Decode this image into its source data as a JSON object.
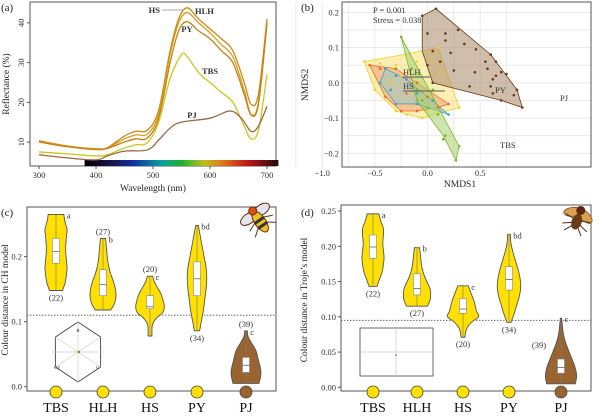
{
  "panels": {
    "a": "(a)",
    "b": "(b)",
    "c": "(c)",
    "d": "(d)"
  },
  "chart_data": [
    {
      "id": "a",
      "type": "line",
      "xlabel": "Wavelength (nm)",
      "ylabel": "Reflectance (%)",
      "xlim": [
        300,
        700
      ],
      "ylim": [
        5,
        45
      ],
      "xticks": [
        300,
        400,
        500,
        600,
        700
      ],
      "yticks": [
        10,
        20,
        30,
        40
      ],
      "spectrum_bar": [
        380,
        720
      ],
      "series": [
        {
          "name": "HS",
          "color": "#c88a10",
          "x": [
            300,
            350,
            400,
            420,
            450,
            470,
            490,
            510,
            530,
            545,
            560,
            580,
            600,
            620,
            640,
            660,
            672,
            685,
            700
          ],
          "y": [
            10.3,
            9,
            8.3,
            8.6,
            11.5,
            12.7,
            13,
            18,
            33,
            41,
            43.8,
            41,
            38.5,
            36,
            33,
            25,
            19.5,
            22,
            41
          ]
        },
        {
          "name": "HLH",
          "color": "#d69a25",
          "x": [
            300,
            350,
            400,
            420,
            450,
            470,
            490,
            510,
            530,
            545,
            560,
            580,
            600,
            620,
            640,
            660,
            672,
            685,
            700
          ],
          "y": [
            10.1,
            8.9,
            8.2,
            8.5,
            10.8,
            11.8,
            12,
            17,
            32,
            40,
            42.6,
            40,
            37.5,
            34.5,
            31.5,
            23,
            17,
            20,
            40
          ]
        },
        {
          "name": "PY",
          "color": "#c98010",
          "x": [
            300,
            350,
            400,
            420,
            450,
            470,
            490,
            510,
            530,
            545,
            560,
            580,
            600,
            620,
            640,
            660,
            672,
            685,
            700
          ],
          "y": [
            10,
            8.8,
            8.1,
            8.4,
            10,
            10.8,
            11,
            16,
            30,
            38,
            40.3,
            38,
            36,
            33,
            30,
            22,
            16.8,
            19.5,
            40
          ]
        },
        {
          "name": "TBS",
          "color": "#c8c820",
          "x": [
            300,
            350,
            400,
            420,
            450,
            470,
            490,
            510,
            530,
            550,
            560,
            580,
            600,
            620,
            640,
            660,
            672,
            685,
            700
          ],
          "y": [
            7.5,
            7,
            6.5,
            6.8,
            8.5,
            9.3,
            9.8,
            15,
            26,
            32,
            31.5,
            27.5,
            25,
            22.5,
            20,
            14,
            10.8,
            13,
            27
          ]
        },
        {
          "name": "PJ",
          "color": "#9a6a40",
          "x": [
            300,
            350,
            400,
            420,
            450,
            490,
            510,
            530,
            550,
            600,
            635,
            655,
            672,
            685,
            700
          ],
          "y": [
            6.8,
            6,
            5.5,
            6.5,
            7.7,
            8,
            10.5,
            13.5,
            15,
            16,
            17.8,
            16,
            12.7,
            14,
            19
          ]
        }
      ]
    },
    {
      "id": "b",
      "type": "scatter",
      "xlabel": "NMDS1",
      "ylabel": "NMDS2",
      "xlim": [
        -1.3,
        0.95
      ],
      "ylim": [
        -0.24,
        0.22
      ],
      "xticks": [
        -1.0,
        -0.5,
        0.0,
        0.5
      ],
      "yticks": [
        -0.2,
        -0.1,
        0.0,
        0.1,
        0.2
      ],
      "grid": true,
      "annotations": [
        "P = 0.001",
        "Stress =  0.038"
      ],
      "groups": [
        {
          "name": "PY",
          "color": "#f5d020",
          "fill": "#f7e27a",
          "hull": [
            [
              -0.6,
              0.06
            ],
            [
              -0.05,
              0.09
            ],
            [
              0.1,
              0.1
            ],
            [
              0.3,
              -0.07
            ],
            [
              -0.05,
              -0.1
            ],
            [
              -0.3,
              -0.08
            ],
            [
              -0.5,
              -0.02
            ]
          ],
          "points": [
            [
              -0.6,
              0.06
            ],
            [
              -0.45,
              0.055
            ],
            [
              -0.3,
              0.05
            ],
            [
              -0.1,
              0.06
            ],
            [
              0.1,
              0.1
            ],
            [
              0.3,
              -0.07
            ],
            [
              -0.05,
              -0.1
            ],
            [
              -0.2,
              -0.09
            ],
            [
              -0.3,
              -0.08
            ],
            [
              -0.5,
              -0.02
            ],
            [
              -0.35,
              0.0
            ],
            [
              -0.15,
              -0.03
            ],
            [
              0.05,
              -0.05
            ],
            [
              -0.25,
              0.02
            ]
          ]
        },
        {
          "name": "HLH",
          "color": "#e86a2a",
          "fill": "#f0a070",
          "hull": [
            [
              -0.55,
              0.05
            ],
            [
              -0.3,
              0.04
            ],
            [
              0.2,
              -0.06
            ],
            [
              0.1,
              -0.07
            ],
            [
              -0.1,
              -0.08
            ],
            [
              -0.25,
              -0.08
            ],
            [
              -0.4,
              -0.04
            ]
          ],
          "points": [
            [
              -0.55,
              0.05
            ],
            [
              -0.45,
              0.04
            ],
            [
              -0.3,
              0.04
            ],
            [
              -0.1,
              0.0
            ],
            [
              0.2,
              -0.06
            ],
            [
              0.1,
              -0.07
            ],
            [
              -0.1,
              -0.08
            ],
            [
              -0.25,
              -0.08
            ],
            [
              -0.4,
              -0.04
            ],
            [
              -0.35,
              -0.02
            ],
            [
              -0.2,
              -0.03
            ],
            [
              0.0,
              -0.04
            ]
          ]
        },
        {
          "name": "HS",
          "color": "#3aa0c8",
          "fill": "#9ac8c8",
          "hull": [
            [
              -0.45,
              0.0
            ],
            [
              -0.4,
              0.04
            ],
            [
              -0.2,
              0.01
            ],
            [
              0.2,
              -0.09
            ],
            [
              -0.1,
              -0.06
            ],
            [
              -0.3,
              -0.06
            ]
          ],
          "points": [
            [
              -0.45,
              0.0
            ],
            [
              -0.4,
              0.04
            ],
            [
              -0.3,
              0.02
            ],
            [
              -0.2,
              0.01
            ],
            [
              -0.1,
              -0.03
            ],
            [
              0.05,
              -0.05
            ],
            [
              0.2,
              -0.09
            ],
            [
              -0.1,
              -0.06
            ],
            [
              -0.3,
              -0.06
            ],
            [
              -0.35,
              -0.02
            ]
          ]
        },
        {
          "name": "TBS",
          "color": "#7ab82a",
          "fill": "#a8d070",
          "hull": [
            [
              -0.25,
              0.13
            ],
            [
              0.3,
              -0.18
            ],
            [
              0.27,
              -0.22
            ],
            [
              0.15,
              -0.15
            ],
            [
              -0.1,
              -0.05
            ]
          ],
          "points": [
            [
              -0.25,
              0.13
            ],
            [
              -0.15,
              0.04
            ],
            [
              -0.1,
              -0.02
            ],
            [
              -0.05,
              -0.05
            ],
            [
              0.0,
              -0.07
            ],
            [
              0.1,
              -0.09
            ],
            [
              0.17,
              -0.15
            ],
            [
              0.15,
              -0.16
            ],
            [
              0.3,
              -0.18
            ],
            [
              0.27,
              -0.22
            ],
            [
              -0.1,
              -0.05
            ],
            [
              0.05,
              -0.02
            ]
          ]
        },
        {
          "name": "PJ",
          "color": "#6a3a18",
          "fill": "#a88868",
          "hull": [
            [
              -0.05,
              0.19
            ],
            [
              0.08,
              0.21
            ],
            [
              0.6,
              0.08
            ],
            [
              0.85,
              -0.02
            ],
            [
              0.9,
              -0.07
            ],
            [
              0.7,
              -0.05
            ],
            [
              0.05,
              0.0
            ],
            [
              -0.05,
              0.09
            ]
          ],
          "points": [
            [
              -0.05,
              0.19
            ],
            [
              0.08,
              0.21
            ],
            [
              0.0,
              0.14
            ],
            [
              0.17,
              0.14
            ],
            [
              0.29,
              0.15
            ],
            [
              0.17,
              0.12
            ],
            [
              0.35,
              0.11
            ],
            [
              0.05,
              0.09
            ],
            [
              0.22,
              0.085
            ],
            [
              0.46,
              0.095
            ],
            [
              0.6,
              0.08
            ],
            [
              0.55,
              0.06
            ],
            [
              0.65,
              0.06
            ],
            [
              0.57,
              0.04
            ],
            [
              0.7,
              0.03
            ],
            [
              0.65,
              0.02
            ],
            [
              0.45,
              0.03
            ],
            [
              0.25,
              0.035
            ],
            [
              0.62,
              0.01
            ],
            [
              0.75,
              0.025
            ],
            [
              0.6,
              -0.01
            ],
            [
              0.4,
              -0.01
            ],
            [
              0.62,
              -0.03
            ],
            [
              0.85,
              -0.02
            ],
            [
              0.82,
              -0.035
            ],
            [
              0.9,
              -0.07
            ],
            [
              0.7,
              -0.05
            ],
            [
              0.05,
              0.0
            ],
            [
              0.0,
              0.05
            ],
            [
              0.12,
              0.06
            ]
          ]
        }
      ]
    },
    {
      "id": "c",
      "type": "violin",
      "ylabel": "Colour distance in CH model",
      "ylim": [
        0,
        0.27
      ],
      "yticks": [
        "0.0",
        "0.1",
        "0.2"
      ],
      "threshold": 0.11,
      "inset_labels": [
        "B",
        "UV",
        "G"
      ],
      "categories": [
        "TBS",
        "HLH",
        "HS",
        "PY",
        "PJ"
      ],
      "violins": [
        {
          "name": "TBS",
          "color": "#ffe000",
          "min": 0.148,
          "max": 0.265,
          "q1": 0.19,
          "median": 0.208,
          "q3": 0.228,
          "n": "(22)",
          "n_pos": "below",
          "letter": "a",
          "density": [
            0.5,
            0.7,
            0.8,
            0.85,
            0.8,
            0.75,
            0.75,
            0.8,
            0.85,
            0.7,
            0.6
          ]
        },
        {
          "name": "HLH",
          "color": "#ffe000",
          "min": 0.118,
          "max": 0.228,
          "q1": 0.14,
          "median": 0.157,
          "q3": 0.18,
          "n": "(27)",
          "n_pos": "above",
          "letter": "b",
          "density": [
            0.6,
            0.9,
            1.0,
            0.95,
            0.8,
            0.6,
            0.45,
            0.35,
            0.3,
            0.25,
            0.2
          ]
        },
        {
          "name": "HS",
          "color": "#ffe000",
          "min": 0.078,
          "max": 0.17,
          "q1": 0.12,
          "median": 0.123,
          "q3": 0.14,
          "n": "(20)",
          "n_pos": "above",
          "letter": "c",
          "density": [
            0.15,
            0.15,
            0.2,
            0.5,
            1.0,
            1.1,
            1.0,
            0.85,
            0.6,
            0.35,
            0.2
          ]
        },
        {
          "name": "PY",
          "color": "#ffe000",
          "min": 0.086,
          "max": 0.248,
          "q1": 0.14,
          "median": 0.166,
          "q3": 0.192,
          "n": "(34)",
          "n_pos": "below",
          "letter": "bd",
          "density": [
            0.2,
            0.35,
            0.5,
            0.6,
            0.7,
            0.75,
            0.7,
            0.55,
            0.4,
            0.25,
            0.1
          ]
        },
        {
          "name": "PJ",
          "color": "#9a6430",
          "min": 0.005,
          "max": 0.086,
          "q1": 0.022,
          "median": 0.033,
          "q3": 0.045,
          "n": "(39)",
          "n_pos": "above",
          "letter": "c",
          "density": [
            1.0,
            1.1,
            1.15,
            1.1,
            1.0,
            0.9,
            0.8,
            0.6,
            0.35,
            0.15,
            0.1
          ]
        }
      ]
    },
    {
      "id": "d",
      "type": "violin",
      "ylabel": "Colour distance in Troje’s model",
      "ylim": [
        0,
        0.255
      ],
      "yticks": [
        "0.00",
        "0.05",
        "0.10",
        "0.15",
        "0.20",
        "0.25"
      ],
      "threshold": 0.095,
      "categories": [
        "TBS",
        "HLH",
        "HS",
        "PY",
        "PJ"
      ],
      "violins": [
        {
          "name": "TBS",
          "color": "#ffe000",
          "min": 0.143,
          "max": 0.246,
          "q1": 0.183,
          "median": 0.199,
          "q3": 0.216,
          "n": "(22)",
          "n_pos": "below",
          "letter": "a",
          "density": [
            0.3,
            0.5,
            0.7,
            0.8,
            0.85,
            0.8,
            0.75,
            0.8,
            0.8,
            0.6,
            0.45
          ]
        },
        {
          "name": "HLH",
          "color": "#ffe000",
          "min": 0.115,
          "max": 0.198,
          "q1": 0.131,
          "median": 0.14,
          "q3": 0.161,
          "n": "(27)",
          "n_pos": "below",
          "letter": "b",
          "density": [
            0.8,
            1.0,
            1.05,
            1.0,
            0.8,
            0.6,
            0.45,
            0.35,
            0.3,
            0.25,
            0.2
          ]
        },
        {
          "name": "HS",
          "color": "#ffe000",
          "min": 0.071,
          "max": 0.144,
          "q1": 0.105,
          "median": 0.111,
          "q3": 0.126,
          "n": "(20)",
          "n_pos": "below",
          "letter": "c",
          "density": [
            0.15,
            0.2,
            0.35,
            0.7,
            1.2,
            1.05,
            0.95,
            0.85,
            0.7,
            0.55,
            0.4
          ]
        },
        {
          "name": "PY",
          "color": "#ffe000",
          "min": 0.092,
          "max": 0.217,
          "q1": 0.138,
          "median": 0.153,
          "q3": 0.171,
          "n": "(34)",
          "n_pos": "below",
          "letter": "bd",
          "density": [
            0.15,
            0.4,
            0.6,
            0.8,
            0.9,
            0.85,
            0.7,
            0.5,
            0.3,
            0.15,
            0.1
          ]
        },
        {
          "name": "PJ",
          "color": "#9a6430",
          "min": 0.005,
          "max": 0.098,
          "q1": 0.02,
          "median": 0.028,
          "q3": 0.04,
          "n": "(39)",
          "n_pos": "left",
          "letter": "c",
          "density": [
            1.1,
            1.2,
            1.15,
            1.0,
            0.8,
            0.6,
            0.4,
            0.25,
            0.15,
            0.1,
            0.05
          ]
        }
      ]
    }
  ]
}
